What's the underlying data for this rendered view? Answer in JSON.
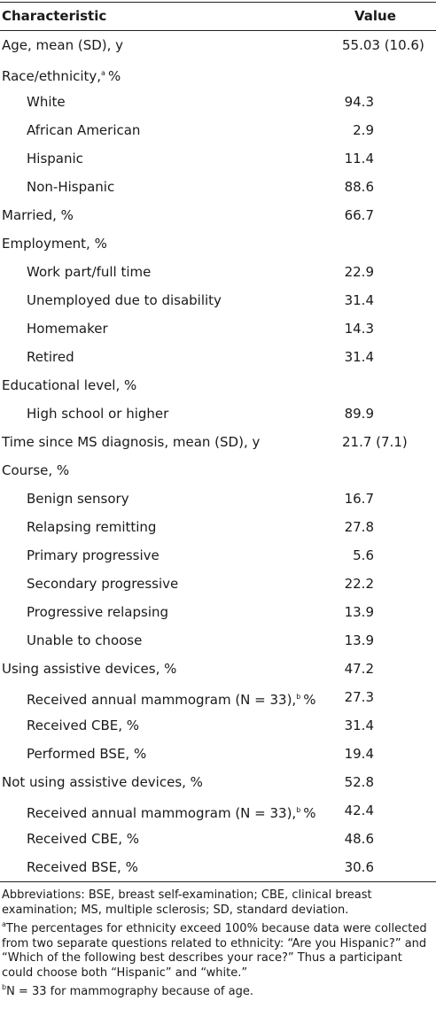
{
  "table": {
    "header": {
      "characteristic": "Characteristic",
      "value": "Value"
    },
    "groups": [
      {
        "label": "Age, mean (SD), y",
        "value": "55.03 (10.6)",
        "items": []
      },
      {
        "label": "Race/ethnicity,",
        "note": "a",
        "unit": "%",
        "items": [
          {
            "label": "White",
            "value": "94.3"
          },
          {
            "label": "African American",
            "value": "2.9"
          },
          {
            "label": "Hispanic",
            "value": "11.4"
          },
          {
            "label": "Non-Hispanic",
            "value": "88.6"
          }
        ]
      },
      {
        "label": "Married, %",
        "value": "66.7",
        "items": []
      },
      {
        "label": "Employment, %",
        "items": [
          {
            "label": "Work part/full time",
            "value": "22.9"
          },
          {
            "label": "Unemployed due to disability",
            "value": "31.4"
          },
          {
            "label": "Homemaker",
            "value": "14.3"
          },
          {
            "label": "Retired",
            "value": "31.4"
          }
        ]
      },
      {
        "label": "Educational level, %",
        "items": [
          {
            "label": "High school or higher",
            "value": "89.9"
          }
        ]
      },
      {
        "label": "Time since MS diagnosis, mean (SD), y",
        "value": "21.7 (7.1)",
        "items": []
      },
      {
        "label": "Course, %",
        "items": [
          {
            "label": "Benign sensory",
            "value": "16.7"
          },
          {
            "label": "Relapsing remitting",
            "value": "27.8"
          },
          {
            "label": "Primary progressive",
            "value": "5.6"
          },
          {
            "label": "Secondary progressive",
            "value": "22.2"
          },
          {
            "label": "Progressive relapsing",
            "value": "13.9"
          },
          {
            "label": "Unable to choose",
            "value": "13.9"
          }
        ]
      },
      {
        "label": "Using assistive devices, %",
        "value": "47.2",
        "items": [
          {
            "label": "Received annual mammogram (N = 33),",
            "note": "b",
            "unit": "%",
            "value": "27.3"
          },
          {
            "label": "Received CBE, %",
            "value": "31.4"
          },
          {
            "label": "Performed BSE, %",
            "value": "19.4"
          }
        ]
      },
      {
        "label": "Not using assistive devices, %",
        "value": "52.8",
        "items": [
          {
            "label": "Received annual mammogram (N = 33),",
            "note": "b",
            "unit": "%",
            "value": "42.4"
          },
          {
            "label": "Received CBE, %",
            "value": "48.6"
          },
          {
            "label": "Received BSE, %",
            "value": "30.6"
          }
        ]
      }
    ]
  },
  "footnotes": [
    {
      "text": "Abbreviations: BSE, breast self-examination; CBE, clinical breast examination; MS, multiple sclerosis; SD, standard deviation."
    },
    {
      "mark": "a",
      "text": "The percentages for ethnicity exceed 100% because data were collected from two separate questions related to ethnicity: “Are you Hispanic?” and “Which of the following best describes your race?” Thus a participant could choose both “Hispanic” and “white.”"
    },
    {
      "mark": "b",
      "text": "N = 33 for mammography because of age."
    }
  ]
}
